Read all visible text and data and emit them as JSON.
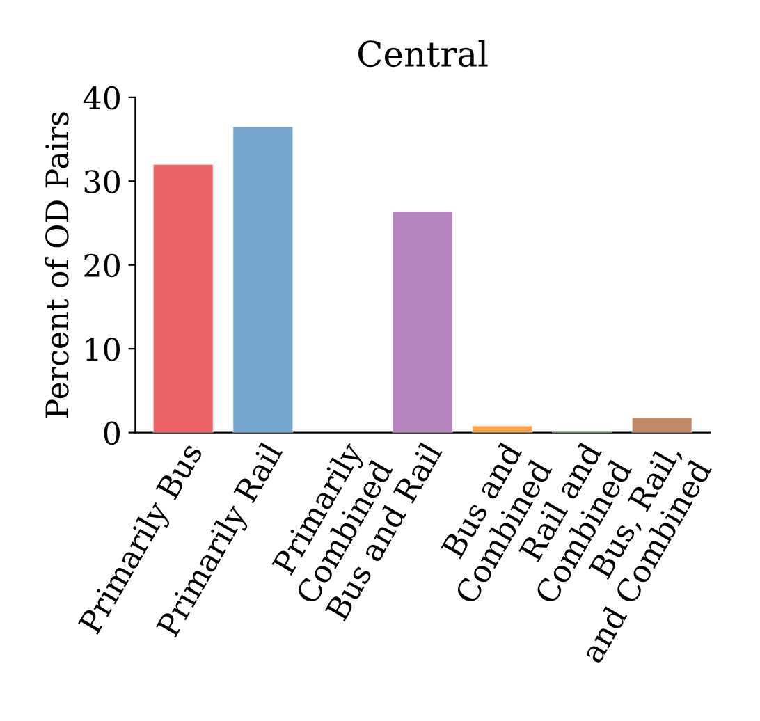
{
  "chart_data": {
    "type": "bar",
    "title": "Central",
    "ylabel": "Percent of OD Pairs",
    "categories": [
      "Primarily Bus",
      "Primarily Rail",
      "Primarily\nCombined",
      "Bus and Rail",
      "Bus and\nCombined",
      "Rail and\nCombined",
      "Bus, Rail,\nand Combined"
    ],
    "values": [
      32.0,
      36.5,
      null,
      26.4,
      0.8,
      0.2,
      1.8
    ],
    "colors": [
      "#ec6264",
      "#74a6cd",
      null,
      "#b684bf",
      "#fea348",
      "#8cc98a",
      "#c08a69"
    ],
    "ylim": [
      0,
      40
    ],
    "yticks": [
      0,
      10,
      20,
      30,
      40
    ],
    "grid": false,
    "legend": false
  }
}
